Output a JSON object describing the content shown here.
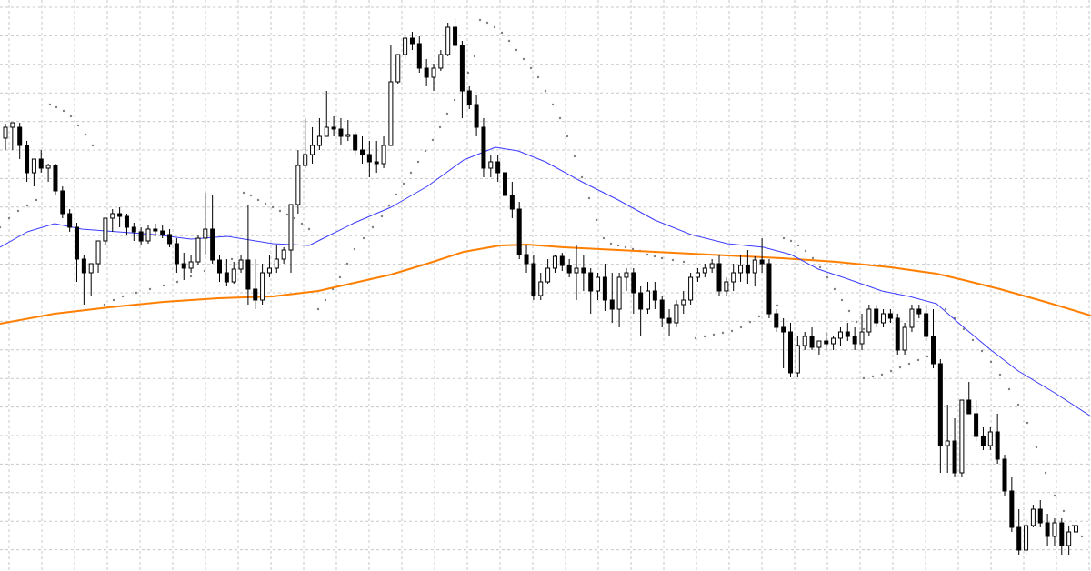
{
  "chart_data": {
    "type": "candlestick",
    "title": "",
    "xlabel": "",
    "ylabel": "",
    "grid": true,
    "ylim": [
      0,
      628
    ],
    "price_axis_inverted": true,
    "bar_spacing_units": 7.85,
    "colors": {
      "background": "#ffffff",
      "grid": "#c8c8c8",
      "candle": "#000000",
      "ma_fast": "#3b3bff",
      "ma_slow": "#ff7f00",
      "sar": "#7f7f7f"
    },
    "candles": [
      [
        152,
        136,
        140,
        165
      ],
      [
        140,
        135,
        135,
        165
      ],
      [
        140,
        135,
        160,
        175
      ],
      [
        160,
        155,
        190,
        200
      ],
      [
        190,
        180,
        175,
        205
      ],
      [
        175,
        165,
        185,
        190
      ],
      [
        185,
        180,
        182,
        200
      ],
      [
        182,
        180,
        210,
        215
      ],
      [
        210,
        205,
        235,
        240
      ],
      [
        235,
        230,
        250,
        255
      ],
      [
        250,
        245,
        285,
        310
      ],
      [
        285,
        280,
        300,
        335
      ],
      [
        300,
        295,
        290,
        325
      ],
      [
        290,
        280,
        265,
        300
      ],
      [
        265,
        258,
        240,
        270
      ],
      [
        240,
        230,
        235,
        255
      ],
      [
        235,
        228,
        238,
        250
      ],
      [
        238,
        235,
        250,
        258
      ],
      [
        250,
        245,
        255,
        265
      ],
      [
        255,
        250,
        265,
        270
      ],
      [
        265,
        248,
        252,
        268
      ],
      [
        252,
        246,
        254,
        260
      ],
      [
        254,
        248,
        258,
        262
      ],
      [
        258,
        252,
        268,
        272
      ],
      [
        268,
        262,
        290,
        300
      ],
      [
        290,
        278,
        295,
        308
      ],
      [
        295,
        280,
        288,
        300
      ],
      [
        288,
        258,
        262,
        292
      ],
      [
        262,
        212,
        252,
        280
      ],
      [
        252,
        215,
        286,
        290
      ],
      [
        286,
        280,
        300,
        310
      ],
      [
        300,
        285,
        310,
        315
      ],
      [
        310,
        288,
        296,
        312
      ],
      [
        296,
        280,
        286,
        300
      ],
      [
        286,
        225,
        318,
        335
      ],
      [
        318,
        285,
        330,
        340
      ],
      [
        330,
        290,
        300,
        335
      ],
      [
        300,
        280,
        295,
        305
      ],
      [
        295,
        270,
        285,
        300
      ],
      [
        285,
        272,
        275,
        290
      ],
      [
        275,
        230,
        225,
        300
      ],
      [
        225,
        165,
        182,
        235
      ],
      [
        182,
        130,
        170,
        185
      ],
      [
        170,
        140,
        160,
        180
      ],
      [
        160,
        130,
        150,
        165
      ],
      [
        150,
        100,
        140,
        150
      ],
      [
        140,
        128,
        142,
        150
      ],
      [
        142,
        130,
        150,
        160
      ],
      [
        150,
        132,
        148,
        155
      ],
      [
        148,
        145,
        165,
        170
      ],
      [
        165,
        150,
        170,
        180
      ],
      [
        170,
        155,
        178,
        195
      ],
      [
        178,
        155,
        180,
        190
      ],
      [
        180,
        150,
        160,
        185
      ],
      [
        160,
        50,
        90,
        95
      ],
      [
        90,
        65,
        60,
        92
      ],
      [
        60,
        40,
        42,
        65
      ],
      [
        42,
        35,
        48,
        55
      ],
      [
        48,
        40,
        75,
        80
      ],
      [
        75,
        65,
        85,
        95
      ],
      [
        85,
        70,
        75,
        100
      ],
      [
        75,
        55,
        60,
        78
      ],
      [
        60,
        25,
        30,
        62
      ],
      [
        30,
        20,
        50,
        55
      ],
      [
        50,
        45,
        100,
        130
      ],
      [
        100,
        95,
        115,
        120
      ],
      [
        115,
        105,
        140,
        150
      ],
      [
        140,
        130,
        185,
        195
      ],
      [
        185,
        170,
        178,
        195
      ],
      [
        178,
        170,
        190,
        200
      ],
      [
        190,
        180,
        215,
        225
      ],
      [
        215,
        200,
        230,
        240
      ],
      [
        230,
        222,
        280,
        285
      ],
      [
        280,
        270,
        290,
        300
      ],
      [
        290,
        280,
        325,
        330
      ],
      [
        325,
        300,
        310,
        330
      ],
      [
        310,
        285,
        295,
        312
      ],
      [
        295,
        280,
        282,
        300
      ],
      [
        282,
        278,
        292,
        298
      ],
      [
        292,
        285,
        300,
        305
      ],
      [
        300,
        270,
        295,
        330
      ],
      [
        295,
        280,
        300,
        320
      ],
      [
        300,
        295,
        320,
        345
      ],
      [
        320,
        300,
        305,
        330
      ],
      [
        305,
        290,
        330,
        342
      ],
      [
        330,
        300,
        340,
        355
      ],
      [
        340,
        300,
        305,
        360
      ],
      [
        305,
        295,
        300,
        320
      ],
      [
        300,
        295,
        322,
        345
      ],
      [
        322,
        315,
        340,
        370
      ],
      [
        340,
        310,
        320,
        345
      ],
      [
        320,
        310,
        330,
        340
      ],
      [
        330,
        325,
        350,
        360
      ],
      [
        350,
        340,
        355,
        370
      ],
      [
        355,
        330,
        335,
        360
      ],
      [
        335,
        320,
        330,
        345
      ],
      [
        330,
        300,
        305,
        335
      ],
      [
        305,
        295,
        300,
        310
      ],
      [
        300,
        290,
        295,
        305
      ],
      [
        295,
        285,
        290,
        300
      ],
      [
        290,
        280,
        320,
        325
      ],
      [
        320,
        305,
        310,
        325
      ],
      [
        310,
        290,
        300,
        320
      ],
      [
        300,
        280,
        292,
        310
      ],
      [
        292,
        275,
        300,
        312
      ],
      [
        300,
        282,
        286,
        315
      ],
      [
        286,
        262,
        290,
        300
      ],
      [
        290,
        285,
        345,
        350
      ],
      [
        345,
        340,
        360,
        365
      ],
      [
        360,
        350,
        365,
        405
      ],
      [
        365,
        355,
        410,
        415
      ],
      [
        410,
        370,
        380,
        415
      ],
      [
        380,
        365,
        370,
        385
      ],
      [
        370,
        360,
        382,
        385
      ],
      [
        382,
        375,
        375,
        390
      ],
      [
        375,
        365,
        378,
        385
      ],
      [
        378,
        370,
        372,
        385
      ],
      [
        372,
        360,
        365,
        380
      ],
      [
        365,
        355,
        370,
        375
      ],
      [
        370,
        360,
        378,
        385
      ],
      [
        378,
        345,
        365,
        385
      ],
      [
        365,
        335,
        340,
        370
      ],
      [
        340,
        335,
        355,
        360
      ],
      [
        355,
        340,
        345,
        360
      ],
      [
        345,
        340,
        350,
        355
      ],
      [
        350,
        345,
        385,
        390
      ],
      [
        385,
        355,
        360,
        390
      ],
      [
        360,
        335,
        340,
        365
      ],
      [
        340,
        335,
        345,
        350
      ],
      [
        345,
        335,
        370,
        375
      ],
      [
        370,
        340,
        400,
        405
      ],
      [
        400,
        395,
        490,
        520
      ],
      [
        490,
        445,
        485,
        520
      ],
      [
        485,
        460,
        520,
        525
      ],
      [
        520,
        445,
        440,
        525
      ],
      [
        440,
        420,
        455,
        455
      ],
      [
        455,
        440,
        480,
        485
      ],
      [
        480,
        470,
        490,
        495
      ],
      [
        490,
        470,
        475,
        495
      ],
      [
        475,
        455,
        505,
        510
      ],
      [
        505,
        500,
        540,
        545
      ],
      [
        540,
        525,
        580,
        585
      ],
      [
        580,
        560,
        605,
        610
      ],
      [
        605,
        570,
        578,
        610
      ],
      [
        578,
        555,
        560,
        580
      ],
      [
        560,
        550,
        575,
        580
      ],
      [
        575,
        565,
        590,
        600
      ],
      [
        590,
        570,
        575,
        600
      ],
      [
        575,
        570,
        600,
        610
      ],
      [
        600,
        578,
        585,
        610
      ],
      [
        585,
        570,
        578,
        590
      ]
    ],
    "ma_fast": [
      [
        0,
        272
      ],
      [
        30,
        255
      ],
      [
        60,
        246
      ],
      [
        90,
        252
      ],
      [
        130,
        255
      ],
      [
        170,
        258
      ],
      [
        210,
        263
      ],
      [
        250,
        260
      ],
      [
        300,
        268
      ],
      [
        340,
        270
      ],
      [
        360,
        260
      ],
      [
        390,
        245
      ],
      [
        430,
        228
      ],
      [
        470,
        205
      ],
      [
        510,
        176
      ],
      [
        545,
        162
      ],
      [
        570,
        166
      ],
      [
        600,
        178
      ],
      [
        640,
        200
      ],
      [
        680,
        220
      ],
      [
        720,
        242
      ],
      [
        760,
        258
      ],
      [
        800,
        268
      ],
      [
        840,
        272
      ],
      [
        870,
        280
      ],
      [
        900,
        296
      ],
      [
        930,
        306
      ],
      [
        970,
        320
      ],
      [
        1000,
        326
      ],
      [
        1030,
        334
      ],
      [
        1060,
        360
      ],
      [
        1090,
        385
      ],
      [
        1120,
        408
      ],
      [
        1160,
        432
      ],
      [
        1200,
        458
      ]
    ],
    "ma_slow": [
      [
        0,
        356
      ],
      [
        60,
        345
      ],
      [
        120,
        338
      ],
      [
        180,
        332
      ],
      [
        240,
        328
      ],
      [
        300,
        326
      ],
      [
        350,
        320
      ],
      [
        390,
        311
      ],
      [
        430,
        302
      ],
      [
        470,
        290
      ],
      [
        510,
        277
      ],
      [
        550,
        270
      ],
      [
        580,
        269
      ],
      [
        620,
        272
      ],
      [
        700,
        276
      ],
      [
        780,
        280
      ],
      [
        860,
        284
      ],
      [
        920,
        288
      ],
      [
        980,
        294
      ],
      [
        1030,
        301
      ],
      [
        1060,
        308
      ],
      [
        1100,
        318
      ],
      [
        1150,
        332
      ],
      [
        1200,
        347
      ]
    ],
    "sar": [
      [
        0,
        250
      ],
      [
        10,
        240
      ],
      [
        20,
        232
      ],
      [
        30,
        226
      ],
      [
        40,
        220
      ],
      [
        55,
        115
      ],
      [
        62,
        118
      ],
      [
        70,
        122
      ],
      [
        78,
        128
      ],
      [
        86,
        138
      ],
      [
        94,
        148
      ],
      [
        102,
        160
      ],
      [
        115,
        335
      ],
      [
        125,
        330
      ],
      [
        135,
        326
      ],
      [
        150,
        322
      ],
      [
        165,
        318
      ],
      [
        180,
        314
      ],
      [
        195,
        310
      ],
      [
        210,
        304
      ],
      [
        225,
        298
      ],
      [
        240,
        292
      ],
      [
        255,
        285
      ],
      [
        268,
        212
      ],
      [
        276,
        215
      ],
      [
        284,
        220
      ],
      [
        292,
        224
      ],
      [
        300,
        228
      ],
      [
        308,
        232
      ],
      [
        316,
        236
      ],
      [
        324,
        240
      ],
      [
        332,
        246
      ],
      [
        340,
        252
      ],
      [
        350,
        340
      ],
      [
        358,
        330
      ],
      [
        366,
        318
      ],
      [
        374,
        305
      ],
      [
        382,
        290
      ],
      [
        390,
        274
      ],
      [
        400,
        262
      ],
      [
        410,
        250
      ],
      [
        420,
        238
      ],
      [
        428,
        226
      ],
      [
        436,
        214
      ],
      [
        444,
        202
      ],
      [
        452,
        190
      ],
      [
        460,
        178
      ],
      [
        468,
        166
      ],
      [
        476,
        154
      ],
      [
        484,
        140
      ],
      [
        492,
        125
      ],
      [
        500,
        110
      ],
      [
        508,
        95
      ],
      [
        515,
        80
      ],
      [
        522,
        62
      ],
      [
        528,
        22
      ],
      [
        536,
        25
      ],
      [
        544,
        30
      ],
      [
        552,
        36
      ],
      [
        560,
        45
      ],
      [
        568,
        55
      ],
      [
        576,
        65
      ],
      [
        584,
        75
      ],
      [
        592,
        85
      ],
      [
        600,
        100
      ],
      [
        608,
        115
      ],
      [
        616,
        130
      ],
      [
        624,
        150
      ],
      [
        632,
        172
      ],
      [
        640,
        195
      ],
      [
        648,
        218
      ],
      [
        656,
        242
      ],
      [
        664,
        262
      ],
      [
        672,
        268
      ],
      [
        680,
        270
      ],
      [
        688,
        272
      ],
      [
        696,
        274
      ],
      [
        704,
        276
      ],
      [
        712,
        280
      ],
      [
        720,
        282
      ],
      [
        728,
        284
      ],
      [
        740,
        286
      ],
      [
        752,
        288
      ],
      [
        765,
        372
      ],
      [
        775,
        370
      ],
      [
        785,
        368
      ],
      [
        795,
        366
      ],
      [
        805,
        364
      ],
      [
        815,
        360
      ],
      [
        825,
        354
      ],
      [
        835,
        348
      ],
      [
        845,
        342
      ],
      [
        855,
        336
      ],
      [
        862,
        262
      ],
      [
        870,
        265
      ],
      [
        878,
        270
      ],
      [
        886,
        276
      ],
      [
        894,
        284
      ],
      [
        902,
        294
      ],
      [
        910,
        305
      ],
      [
        918,
        318
      ],
      [
        926,
        330
      ],
      [
        934,
        342
      ],
      [
        942,
        354
      ],
      [
        950,
        362
      ],
      [
        950,
        416
      ],
      [
        960,
        414
      ],
      [
        970,
        412
      ],
      [
        980,
        408
      ],
      [
        990,
        404
      ],
      [
        1000,
        400
      ],
      [
        1010,
        396
      ],
      [
        1020,
        392
      ],
      [
        1040,
        340
      ],
      [
        1050,
        350
      ],
      [
        1060,
        362
      ],
      [
        1070,
        374
      ],
      [
        1080,
        386
      ],
      [
        1090,
        398
      ],
      [
        1100,
        412
      ],
      [
        1110,
        428
      ],
      [
        1120,
        445
      ],
      [
        1130,
        465
      ],
      [
        1140,
        492
      ],
      [
        1150,
        520
      ],
      [
        1160,
        545
      ],
      [
        1170,
        562
      ],
      [
        1180,
        578
      ],
      [
        1190,
        590
      ]
    ]
  }
}
